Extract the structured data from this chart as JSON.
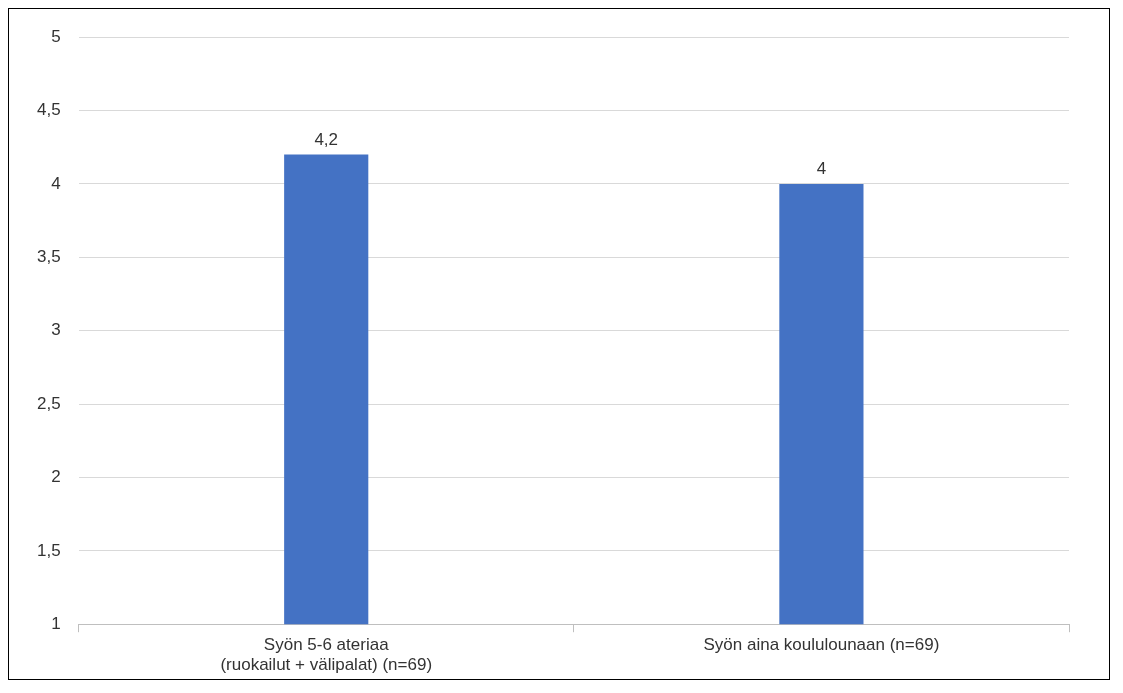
{
  "chart_data": {
    "type": "bar",
    "categories": [
      "Syön 5-6 ateriaa\n(ruokailut + välipalat) (n=69)",
      "Syön aina koululounaan (n=69)"
    ],
    "values": [
      4.2,
      4
    ],
    "color": "#4472c4",
    "value_labels": [
      "4,2",
      "4"
    ],
    "ylim": [
      1,
      5
    ],
    "yticks": [
      1,
      {
        "value": 1.5,
        "label": "1,5"
      },
      2,
      {
        "value": 2.5,
        "label": "2,5"
      },
      3,
      {
        "value": 3.5,
        "label": "3,5"
      },
      4,
      {
        "value": 4.5,
        "label": "4,5"
      },
      5
    ],
    "grid": "y",
    "legend": false
  }
}
